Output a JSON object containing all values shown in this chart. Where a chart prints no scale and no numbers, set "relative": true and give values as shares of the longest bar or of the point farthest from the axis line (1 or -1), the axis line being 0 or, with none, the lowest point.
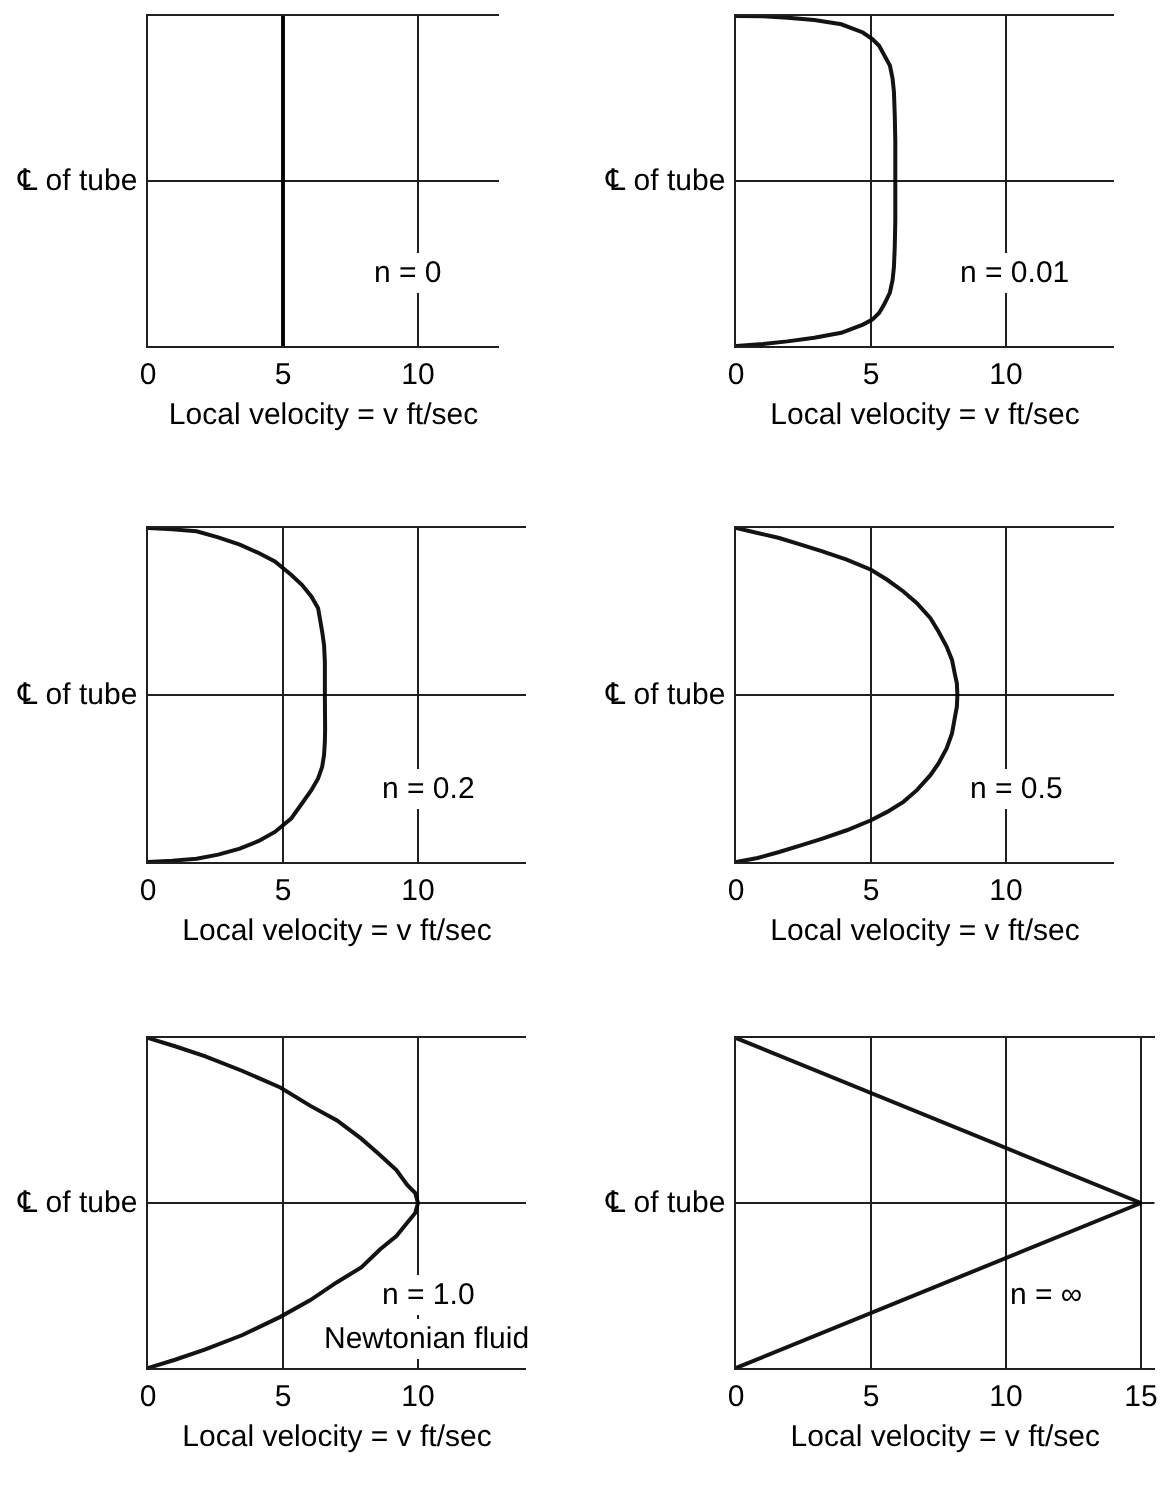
{
  "chart_data": [
    {
      "type": "line",
      "xlabel": "Local velocity = v ft/sec",
      "xlim": [
        0,
        13
      ],
      "xticks": [
        0,
        5,
        10
      ],
      "relative": true,
      "grid": "x",
      "tick_labels": "x",
      "ref_lines": [
        {
          "axis": "y",
          "value": 0.5,
          "label": "℄ of tube"
        }
      ],
      "series": [
        {
          "name": "n = 0",
          "color": "#000000",
          "x": [
            5,
            5
          ],
          "values": [
            0,
            1
          ]
        }
      ]
    },
    {
      "type": "line",
      "xlabel": "Local velocity = v ft/sec",
      "xlim": [
        0,
        14
      ],
      "xticks": [
        0,
        5,
        10
      ],
      "relative": true,
      "grid": "x",
      "tick_labels": "x",
      "ref_lines": [
        {
          "axis": "y",
          "value": 0.5,
          "label": "℄ of tube"
        }
      ],
      "series": [
        {
          "name": "n = 0.01",
          "color": "#000000",
          "x": [
            0,
            1.0,
            1.9,
            2.9,
            3.9,
            4.7,
            5.05,
            5.3,
            5.5,
            5.7,
            5.8,
            5.85,
            5.88,
            5.9,
            5.9,
            5.9,
            5.88,
            5.85,
            5.8,
            5.7,
            5.5,
            5.3,
            5.05,
            4.7,
            3.9,
            2.9,
            1.9,
            1.0,
            0
          ],
          "values": [
            0,
            0.006,
            0.014,
            0.025,
            0.04,
            0.065,
            0.08,
            0.1,
            0.128,
            0.162,
            0.2,
            0.24,
            0.3,
            0.38,
            0.5,
            0.62,
            0.7,
            0.77,
            0.81,
            0.85,
            0.88,
            0.91,
            0.93,
            0.95,
            0.975,
            0.988,
            0.995,
            0.999,
            1
          ]
        }
      ]
    },
    {
      "type": "line",
      "xlabel": "Local velocity = v ft/sec",
      "xlim": [
        0,
        14
      ],
      "xticks": [
        0,
        5,
        10
      ],
      "relative": true,
      "grid": "x",
      "tick_labels": "x",
      "ref_lines": [
        {
          "axis": "y",
          "value": 0.5,
          "label": "℄ of tube"
        }
      ],
      "series": [
        {
          "name": "n = 0.2",
          "color": "#000000",
          "x": [
            0,
            0.9,
            1.8,
            2.6,
            3.4,
            4.1,
            4.7,
            5.3,
            5.7,
            6.05,
            6.3,
            6.45,
            6.52,
            6.55,
            6.56,
            6.55,
            6.55,
            6.52,
            6.45,
            6.3,
            6.05,
            5.7,
            5.3,
            4.7,
            4.1,
            3.4,
            2.6,
            1.8,
            0.9,
            0
          ],
          "values": [
            0,
            0.004,
            0.01,
            0.022,
            0.04,
            0.063,
            0.09,
            0.13,
            0.175,
            0.215,
            0.25,
            0.285,
            0.32,
            0.36,
            0.4,
            0.5,
            0.6,
            0.65,
            0.69,
            0.76,
            0.795,
            0.83,
            0.86,
            0.9,
            0.925,
            0.95,
            0.972,
            0.99,
            0.996,
            1
          ]
        }
      ]
    },
    {
      "type": "line",
      "xlabel": "Local velocity = v ft/sec",
      "xlim": [
        0,
        14
      ],
      "xticks": [
        0,
        5,
        10
      ],
      "relative": true,
      "grid": "x",
      "tick_labels": "x",
      "ref_lines": [
        {
          "axis": "y",
          "value": 0.5,
          "label": "℄ of tube"
        }
      ],
      "series": [
        {
          "name": "n = 0.5",
          "color": "#000000",
          "x": [
            0,
            0.8,
            1.6,
            2.4,
            3.2,
            4.1,
            5.0,
            5.6,
            6.2,
            6.7,
            7.2,
            7.5,
            7.8,
            8.0,
            8.1,
            8.18,
            8.2,
            8.18,
            8.1,
            8.0,
            7.8,
            7.5,
            7.2,
            6.7,
            6.2,
            5.6,
            5.0,
            4.1,
            3.2,
            2.4,
            1.6,
            0.8,
            0
          ],
          "values": [
            0,
            0.012,
            0.03,
            0.05,
            0.07,
            0.095,
            0.125,
            0.15,
            0.18,
            0.215,
            0.26,
            0.295,
            0.34,
            0.385,
            0.43,
            0.465,
            0.5,
            0.535,
            0.565,
            0.605,
            0.645,
            0.69,
            0.73,
            0.775,
            0.81,
            0.845,
            0.875,
            0.905,
            0.93,
            0.95,
            0.97,
            0.985,
            1
          ]
        }
      ]
    },
    {
      "type": "line",
      "xlabel": "Local velocity = v ft/sec",
      "xlim": [
        0,
        14
      ],
      "xticks": [
        0,
        5,
        10
      ],
      "relative": true,
      "grid": "x",
      "tick_labels": "x",
      "ref_lines": [
        {
          "axis": "y",
          "value": 0.5,
          "label": "℄ of tube"
        }
      ],
      "annotations": [
        "Newtonian fluid"
      ],
      "series": [
        {
          "name": "n = 1.0",
          "color": "#000000",
          "x": [
            0,
            1.0,
            2.1,
            3.5,
            4.9,
            6.0,
            7.0,
            7.9,
            8.6,
            9.2,
            9.6,
            9.9,
            10,
            9.9,
            9.6,
            9.2,
            8.6,
            7.9,
            7.0,
            6.0,
            4.9,
            3.5,
            2.1,
            1.0,
            0
          ],
          "values": [
            0,
            0.025,
            0.056,
            0.1,
            0.155,
            0.205,
            0.26,
            0.305,
            0.36,
            0.4,
            0.44,
            0.47,
            0.5,
            0.53,
            0.555,
            0.6,
            0.645,
            0.695,
            0.75,
            0.795,
            0.85,
            0.9,
            0.945,
            0.975,
            1
          ]
        }
      ]
    },
    {
      "type": "line",
      "xlabel": "Local velocity = v ft/sec",
      "xlim": [
        0,
        15.5
      ],
      "xticks": [
        0,
        5,
        10,
        15
      ],
      "relative": true,
      "grid": "x",
      "tick_labels": "x",
      "ref_lines": [
        {
          "axis": "y",
          "value": 0.5,
          "label": "℄ of tube"
        }
      ],
      "series": [
        {
          "name": "n = ∞",
          "color": "#000000",
          "x": [
            0,
            15,
            0
          ],
          "values": [
            0,
            0.5,
            1
          ]
        }
      ]
    }
  ]
}
